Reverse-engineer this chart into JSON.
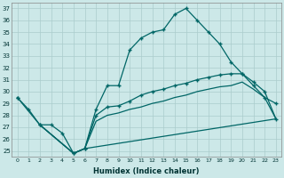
{
  "xlabel": "Humidex (Indice chaleur)",
  "background_color": "#cce8e8",
  "grid_color": "#aacccc",
  "line_color": "#006666",
  "xlim": [
    -0.5,
    23.5
  ],
  "ylim": [
    24.5,
    37.5
  ],
  "xticks": [
    0,
    1,
    2,
    3,
    4,
    5,
    6,
    7,
    8,
    9,
    10,
    11,
    12,
    13,
    14,
    15,
    16,
    17,
    18,
    19,
    20,
    21,
    22,
    23
  ],
  "yticks": [
    25,
    26,
    27,
    28,
    29,
    30,
    31,
    32,
    33,
    34,
    35,
    36,
    37
  ],
  "line1_x": [
    0,
    1,
    2,
    3,
    4,
    5,
    6,
    7,
    8,
    9,
    10,
    11,
    12,
    13,
    14,
    15,
    16,
    17,
    18,
    19,
    20,
    21,
    22,
    23
  ],
  "line1_y": [
    29.5,
    28.5,
    27.2,
    27.2,
    26.5,
    24.8,
    25.2,
    28.5,
    30.5,
    30.5,
    33.5,
    34.5,
    35.0,
    35.2,
    36.5,
    37.0,
    36.0,
    35.0,
    34.0,
    32.5,
    31.5,
    30.5,
    29.5,
    29.0
  ],
  "line2_x": [
    0,
    2,
    5,
    6,
    7,
    8,
    9,
    10,
    11,
    12,
    13,
    14,
    15,
    16,
    17,
    18,
    19,
    20,
    21,
    22,
    23
  ],
  "line2_y": [
    29.5,
    27.2,
    24.8,
    25.2,
    28.0,
    28.7,
    28.8,
    29.2,
    29.7,
    30.0,
    30.2,
    30.5,
    30.7,
    31.0,
    31.2,
    31.4,
    31.5,
    31.5,
    30.8,
    30.0,
    27.7
  ],
  "line3_x": [
    2,
    5,
    6,
    7,
    8,
    9,
    10,
    11,
    12,
    13,
    14,
    15,
    16,
    17,
    18,
    19,
    20,
    21,
    22,
    23
  ],
  "line3_y": [
    27.2,
    24.8,
    25.2,
    27.5,
    28.0,
    28.2,
    28.5,
    28.7,
    29.0,
    29.2,
    29.5,
    29.7,
    30.0,
    30.2,
    30.4,
    30.5,
    30.8,
    30.2,
    29.5,
    27.7
  ],
  "line4_x": [
    2,
    5,
    6,
    23
  ],
  "line4_y": [
    27.2,
    24.8,
    25.2,
    27.7
  ]
}
